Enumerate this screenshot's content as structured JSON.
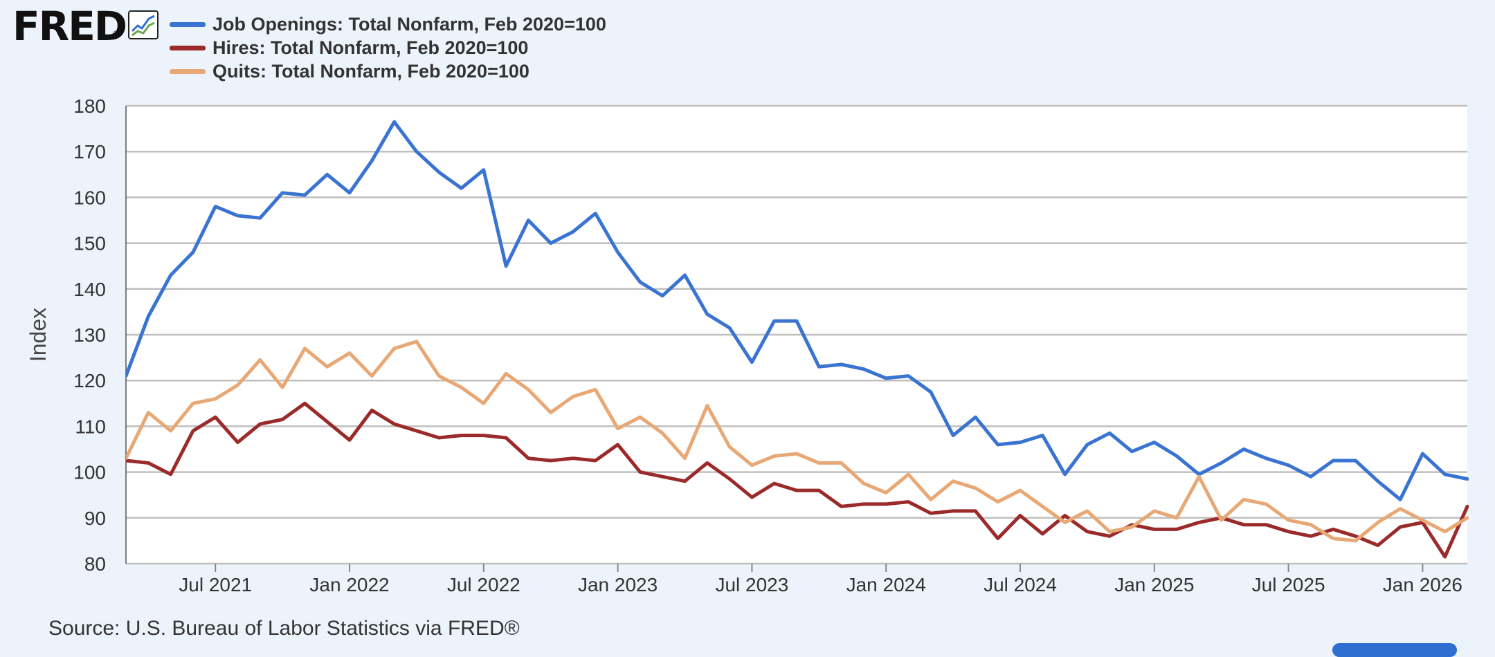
{
  "header": {
    "logo_text": "FRED",
    "logo_reg": "®",
    "logo_icon": "line-chart-icon"
  },
  "source": "Source: U.S. Bureau of Labor Statistics via FRED®",
  "colors": {
    "background": "#edf3fb",
    "plot_background": "#ffffff",
    "grid": "#bfbfbf"
  },
  "chart_data": {
    "type": "line",
    "title": "",
    "xlabel": "",
    "ylabel": "Index",
    "ylim": [
      80,
      180
    ],
    "yticks": [
      80,
      90,
      100,
      110,
      120,
      130,
      140,
      150,
      160,
      170,
      180
    ],
    "xrange": [
      "2021-03",
      "2026-03"
    ],
    "xticks": [
      {
        "date": "2021-07",
        "label": "Jul 2021"
      },
      {
        "date": "2022-01",
        "label": "Jan 2022"
      },
      {
        "date": "2022-07",
        "label": "Jul 2022"
      },
      {
        "date": "2023-01",
        "label": "Jan 2023"
      },
      {
        "date": "2023-07",
        "label": "Jul 2023"
      },
      {
        "date": "2024-01",
        "label": "Jan 2024"
      },
      {
        "date": "2024-07",
        "label": "Jul 2024"
      },
      {
        "date": "2025-01",
        "label": "Jan 2025"
      },
      {
        "date": "2025-07",
        "label": "Jul 2025"
      },
      {
        "date": "2026-01",
        "label": "Jan 2026"
      }
    ],
    "grid": true,
    "legend_position": "top-left",
    "x": [
      "2021-03",
      "2021-04",
      "2021-05",
      "2021-06",
      "2021-07",
      "2021-08",
      "2021-09",
      "2021-10",
      "2021-11",
      "2021-12",
      "2022-01",
      "2022-02",
      "2022-03",
      "2022-04",
      "2022-05",
      "2022-06",
      "2022-07",
      "2022-08",
      "2022-09",
      "2022-10",
      "2022-11",
      "2022-12",
      "2023-01",
      "2023-02",
      "2023-03",
      "2023-04",
      "2023-05",
      "2023-06",
      "2023-07",
      "2023-08",
      "2023-09",
      "2023-10",
      "2023-11",
      "2023-12",
      "2024-01",
      "2024-02",
      "2024-03",
      "2024-04",
      "2024-05",
      "2024-06",
      "2024-07",
      "2024-08",
      "2024-09",
      "2024-10",
      "2024-11",
      "2024-12",
      "2025-01",
      "2025-02",
      "2025-03",
      "2025-04",
      "2025-05",
      "2025-06",
      "2025-07",
      "2025-08",
      "2025-09",
      "2025-10",
      "2025-11",
      "2025-12",
      "2026-01",
      "2026-02",
      "2026-03"
    ],
    "series": [
      {
        "name": "Job Openings: Total Nonfarm, Feb 2020=100",
        "color": "#3a74d2",
        "values": [
          121,
          134,
          143,
          148,
          158,
          156,
          155.5,
          161,
          160.5,
          165,
          161,
          168,
          176.5,
          170,
          165.5,
          162,
          166,
          145,
          155,
          150,
          152.5,
          156.5,
          148,
          141.5,
          138.5,
          143,
          134.5,
          131.5,
          124,
          133,
          133,
          123,
          123.5,
          122.5,
          120.5,
          121,
          117.5,
          108,
          112,
          106,
          106.5,
          108,
          99.5,
          106,
          108.5,
          104.5,
          106.5,
          103.5,
          99.5,
          102,
          105,
          103,
          101.5,
          99,
          102.5,
          102.5,
          98,
          94,
          104,
          99.5,
          98.5
        ]
      },
      {
        "name": "Hires: Total Nonfarm, Feb 2020=100",
        "color": "#9b2a2a",
        "values": [
          102.5,
          102,
          99.5,
          109,
          112,
          106.5,
          110.5,
          111.5,
          115,
          111,
          107,
          113.5,
          110.5,
          109,
          107.5,
          108,
          108,
          107.5,
          103,
          102.5,
          103,
          102.5,
          106,
          100,
          99,
          98,
          102,
          98.5,
          94.5,
          97.5,
          96,
          96,
          92.5,
          93,
          93,
          93.5,
          91,
          91.5,
          91.5,
          85.5,
          90.5,
          86.5,
          90.5,
          87,
          86,
          88.5,
          87.5,
          87.5,
          89,
          90,
          88.5,
          88.5,
          87,
          86,
          87.5,
          86,
          84,
          88,
          89,
          81.5,
          92.5
        ]
      },
      {
        "name": "Quits: Total Nonfarm, Feb 2020=100",
        "color": "#e8a875",
        "values": [
          103,
          113,
          109,
          115,
          116,
          119,
          124.5,
          118.5,
          127,
          123,
          126,
          121,
          127,
          128.5,
          121,
          118.5,
          115,
          121.5,
          118,
          113,
          116.5,
          118,
          109.5,
          112,
          108.5,
          103,
          114.5,
          105.5,
          101.5,
          103.5,
          104,
          102,
          102,
          97.5,
          95.5,
          99.5,
          94,
          98,
          96.5,
          93.5,
          96,
          92.5,
          89,
          91.5,
          87,
          88,
          91.5,
          90,
          99,
          89.5,
          94,
          93,
          89.5,
          88.5,
          85.5,
          85,
          89,
          92,
          89.5,
          87,
          90
        ]
      }
    ]
  }
}
